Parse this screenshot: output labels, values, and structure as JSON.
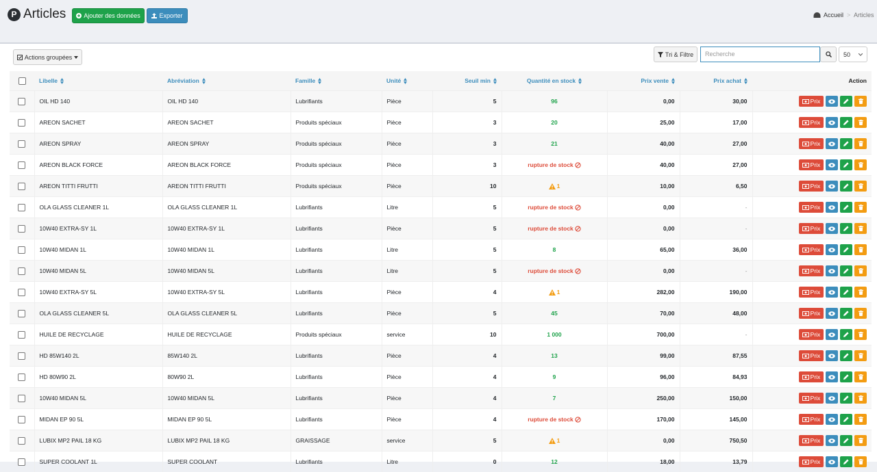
{
  "header": {
    "title": "Articles",
    "add_button": "Ajouter des données",
    "export_button": "Exporter",
    "breadcrumb": [
      "Accueil",
      "Articles"
    ]
  },
  "toolbar": {
    "bulk_actions": "Actions groupées",
    "sort_filter": "Tri & Filtre",
    "search_placeholder": "Recherche",
    "page_size": "50"
  },
  "table": {
    "columns": [
      "Libelle",
      "Abréviation",
      "Famille",
      "Unité",
      "Seuil min",
      "Quantité en stock",
      "Prix vente",
      "Prix achat",
      "Action"
    ],
    "action_label": "Prix",
    "rows": [
      {
        "label": "OIL HD 140",
        "abbr": "OIL HD 140",
        "family": "Lubrifiants",
        "unit": "Pièce",
        "min": "5",
        "stock": "96",
        "stock_status": "ok",
        "sale": "0,00",
        "purchase": "30,00"
      },
      {
        "label": "AREON SACHET",
        "abbr": "AREON SACHET",
        "family": "Produits spéciaux",
        "unit": "Pièce",
        "min": "3",
        "stock": "20",
        "stock_status": "ok",
        "sale": "25,00",
        "purchase": "17,00"
      },
      {
        "label": "AREON SPRAY",
        "abbr": "AREON SPRAY",
        "family": "Produits spéciaux",
        "unit": "Pièce",
        "min": "3",
        "stock": "21",
        "stock_status": "ok",
        "sale": "40,00",
        "purchase": "27,00"
      },
      {
        "label": "AREON BLACK FORCE",
        "abbr": "AREON BLACK FORCE",
        "family": "Produits spéciaux",
        "unit": "Pièce",
        "min": "3",
        "stock": "rupture de stock",
        "stock_status": "out",
        "sale": "40,00",
        "purchase": "27,00"
      },
      {
        "label": "AREON TITTI FRUTTI",
        "abbr": "AREON TITTI FRUTTI",
        "family": "Produits spéciaux",
        "unit": "Pièce",
        "min": "10",
        "stock": "1",
        "stock_status": "low",
        "sale": "10,00",
        "purchase": "6,50"
      },
      {
        "label": "OLA GLASS CLEANER 1L",
        "abbr": "OLA GLASS CLEANER 1L",
        "family": "Lubrifiants",
        "unit": "Litre",
        "min": "5",
        "stock": "rupture de stock",
        "stock_status": "out",
        "sale": "0,00",
        "purchase": "-"
      },
      {
        "label": "10W40 EXTRA-SY 1L",
        "abbr": "10W40 EXTRA-SY 1L",
        "family": "Lubrifiants",
        "unit": "Pièce",
        "min": "5",
        "stock": "rupture de stock",
        "stock_status": "out",
        "sale": "0,00",
        "purchase": "-"
      },
      {
        "label": "10W40 MIDAN 1L",
        "abbr": "10W40 MIDAN 1L",
        "family": "Lubrifiants",
        "unit": "Litre",
        "min": "5",
        "stock": "8",
        "stock_status": "ok",
        "sale": "65,00",
        "purchase": "36,00"
      },
      {
        "label": "10W40 MIDAN 5L",
        "abbr": "10W40 MIDAN 5L",
        "family": "Lubrifiants",
        "unit": "Litre",
        "min": "5",
        "stock": "rupture de stock",
        "stock_status": "out",
        "sale": "0,00",
        "purchase": "-"
      },
      {
        "label": "10W40 EXTRA-SY 5L",
        "abbr": "10W40 EXTRA-SY 5L",
        "family": "Lubrifiants",
        "unit": "Pièce",
        "min": "4",
        "stock": "1",
        "stock_status": "low",
        "sale": "282,00",
        "purchase": "190,00"
      },
      {
        "label": "OLA GLASS CLEANER 5L",
        "abbr": "OLA GLASS CLEANER 5L",
        "family": "Lubrifiants",
        "unit": "Pièce",
        "min": "5",
        "stock": "45",
        "stock_status": "ok",
        "sale": "70,00",
        "purchase": "48,00"
      },
      {
        "label": "HUILE DE RECYCLAGE",
        "abbr": "HUILE DE RECYCLAGE",
        "family": "Produits spéciaux",
        "unit": "service",
        "min": "10",
        "stock": "1 000",
        "stock_status": "ok",
        "sale": "700,00",
        "purchase": "-"
      },
      {
        "label": "HD 85W140 2L",
        "abbr": "85W140 2L",
        "family": "Lubrifiants",
        "unit": "Pièce",
        "min": "4",
        "stock": "13",
        "stock_status": "ok",
        "sale": "99,00",
        "purchase": "87,55"
      },
      {
        "label": "HD 80W90 2L",
        "abbr": "80W90 2L",
        "family": "Lubrifiants",
        "unit": "Pièce",
        "min": "4",
        "stock": "9",
        "stock_status": "ok",
        "sale": "96,00",
        "purchase": "84,93"
      },
      {
        "label": "10W40 MIDAN 5L",
        "abbr": "10W40 MIDAN 5L",
        "family": "Lubrifiants",
        "unit": "Pièce",
        "min": "4",
        "stock": "7",
        "stock_status": "ok",
        "sale": "250,00",
        "purchase": "150,00"
      },
      {
        "label": "MIDAN EP 90 5L",
        "abbr": "MIDAN EP 90 5L",
        "family": "Lubrifiants",
        "unit": "Pièce",
        "min": "4",
        "stock": "rupture de stock",
        "stock_status": "out",
        "sale": "170,00",
        "purchase": "145,00"
      },
      {
        "label": "LUBIX MP2 PAIL 18 KG",
        "abbr": "LUBIX MP2 PAIL 18 KG",
        "family": "GRAISSAGE",
        "unit": "service",
        "min": "5",
        "stock": "1",
        "stock_status": "low",
        "sale": "0,00",
        "purchase": "750,50"
      },
      {
        "label": "SUPER COOLANT 1L",
        "abbr": "SUPER COOLANT",
        "family": "Lubrifiants",
        "unit": "Litre",
        "min": "0",
        "stock": "12",
        "stock_status": "ok",
        "sale": "18,00",
        "purchase": "13,79"
      }
    ]
  }
}
